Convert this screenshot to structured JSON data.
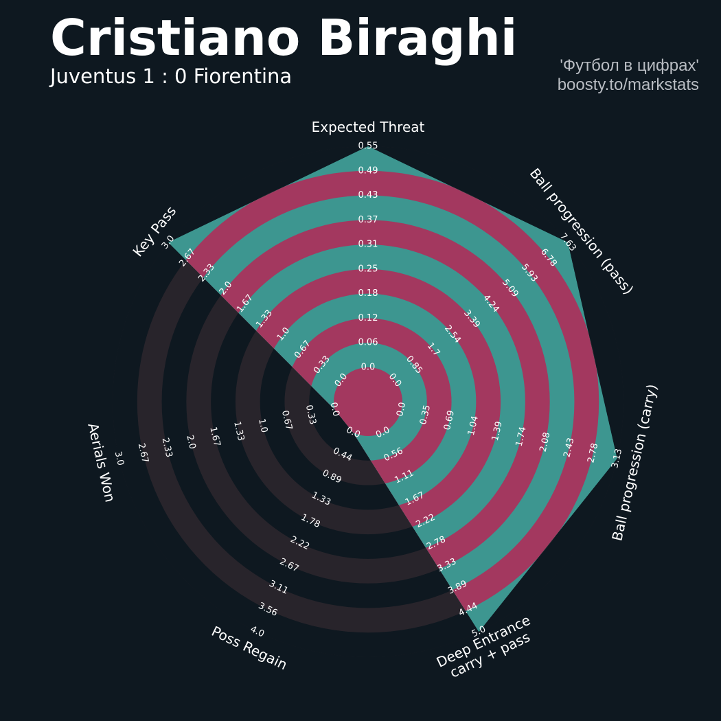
{
  "title": "Cristiano Biraghi",
  "subtitle": "Juventus 1 : 0 Fiorentina",
  "credit": {
    "line1": "'Футбол в цифрах'",
    "line2": "boosty.to/markstats"
  },
  "colors": {
    "background": "#0e1820",
    "band_light": "#28242b",
    "band_dark": "#0e1820",
    "series_fill": "#3d9690",
    "highlight_ring": "#a3385f",
    "text": "#ffffff",
    "credit_text": "#b8bcc2"
  },
  "chart_data": {
    "type": "radar",
    "series": [
      {
        "values": [
          0.55,
          7.63,
          3.13,
          5.0,
          0.0,
          0.0,
          3.0
        ]
      }
    ],
    "axes": [
      {
        "label": "Expected Threat",
        "max": 0.55,
        "ticks": [
          "0.0",
          "0.06",
          "0.12",
          "0.18",
          "0.25",
          "0.31",
          "0.37",
          "0.43",
          "0.49",
          "0.55"
        ]
      },
      {
        "label": "Ball progression (pass)",
        "max": 7.63,
        "ticks": [
          "0.0",
          "0.85",
          "1.7",
          "2.54",
          "3.39",
          "4.24",
          "5.09",
          "5.93",
          "6.78",
          "7.63"
        ]
      },
      {
        "label": "Ball progression (carry)",
        "max": 3.13,
        "ticks": [
          "0.0",
          "0.35",
          "0.69",
          "1.04",
          "1.39",
          "1.74",
          "2.08",
          "2.43",
          "2.78",
          "3.13"
        ]
      },
      {
        "label": "Deep Entrance\ncarry + pass",
        "max": 5.0,
        "ticks": [
          "0.0",
          "0.56",
          "1.11",
          "1.67",
          "2.22",
          "2.78",
          "3.33",
          "3.89",
          "4.44",
          "5.0"
        ]
      },
      {
        "label": "Poss Regain",
        "max": 4.0,
        "ticks": [
          "0.0",
          "0.44",
          "0.89",
          "1.33",
          "1.78",
          "2.22",
          "2.67",
          "3.11",
          "3.56",
          "4.0"
        ]
      },
      {
        "label": "Aerials Won",
        "max": 3.0,
        "ticks": [
          "0.0",
          "0.33",
          "0.67",
          "1.0",
          "1.33",
          "1.67",
          "2.0",
          "2.33",
          "2.67",
          "3.0"
        ]
      },
      {
        "label": "Key Pass",
        "max": 3.0,
        "ticks": [
          "0.0",
          "0.33",
          "0.67",
          "1.0",
          "1.33",
          "1.67",
          "2.0",
          "2.33",
          "2.67",
          "3.0"
        ]
      }
    ]
  }
}
